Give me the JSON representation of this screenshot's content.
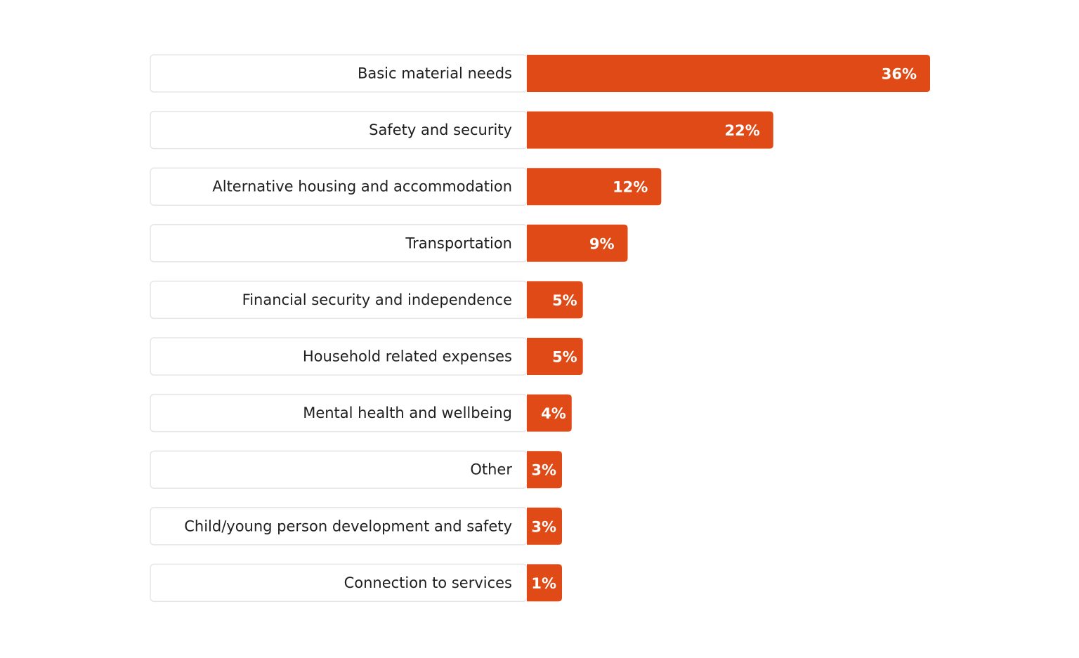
{
  "colors": {
    "bar": "#df4a16",
    "label_box_border": "#e6e6e6",
    "label_box_fill": "#ffffff",
    "label_text": "#1f1f1f",
    "value_text": "#ffffff"
  },
  "chart_data": {
    "type": "bar",
    "orientation": "horizontal",
    "title": "",
    "xlabel": "",
    "ylabel": "",
    "unit": "%",
    "xlim": [
      0,
      36
    ],
    "grid": false,
    "legend": "none",
    "categories": [
      "Basic material needs",
      "Safety and security",
      "Alternative housing and accommodation",
      "Transportation",
      "Financial security and independence",
      "Household related expenses",
      "Mental health and wellbeing",
      "Other",
      "Child/young person development and safety",
      "Connection to services"
    ],
    "values": [
      36,
      22,
      12,
      9,
      5,
      5,
      4,
      3,
      3,
      1
    ],
    "value_labels": [
      "36%",
      "22%",
      "12%",
      "9%",
      "5%",
      "5%",
      "4%",
      "3%",
      "3%",
      "1%"
    ]
  }
}
